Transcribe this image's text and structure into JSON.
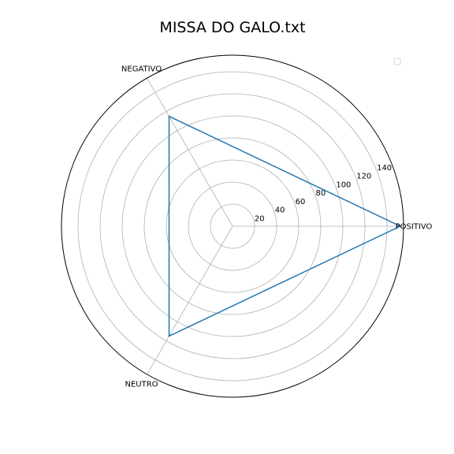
{
  "chart_data": {
    "type": "radar",
    "title": "MISSA DO GALO.txt",
    "categories": [
      "POSITIVO",
      "NEGATIVO",
      "NEUTRO"
    ],
    "series": [
      {
        "values": [
          152,
          115,
          115
        ],
        "color": "#1f77b4"
      }
    ],
    "r_ticks": [
      20,
      40,
      60,
      80,
      100,
      120,
      140
    ],
    "r_max": 155,
    "grid": true,
    "legend": "top-right",
    "legend_entries": [
      ""
    ]
  }
}
